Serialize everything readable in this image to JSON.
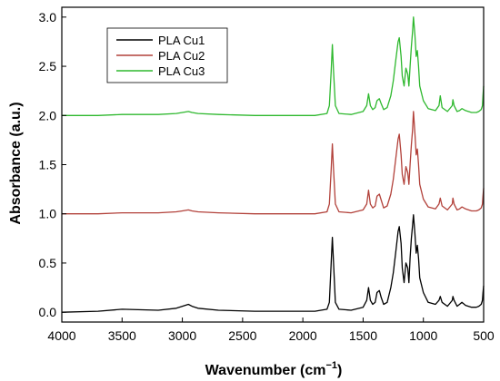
{
  "chart_data": {
    "type": "line",
    "xlabel": "Wavenumber (cm",
    "xlabel_sup": "−1",
    "xlabel_close": ")",
    "ylabel": "Absorbance (a.u.)",
    "xlim": [
      4000,
      500
    ],
    "ylim": [
      -0.1,
      3.1
    ],
    "x_ticks": [
      4000,
      3500,
      3000,
      2500,
      2000,
      1500,
      1000,
      500
    ],
    "x_tick_labels": [
      "4000",
      "3500",
      "3000",
      "2500",
      "2000",
      "1500",
      "1000",
      "500"
    ],
    "y_ticks": [
      0.0,
      0.5,
      1.0,
      1.5,
      2.0,
      2.5,
      3.0
    ],
    "y_tick_labels": [
      "0.0",
      "0.5",
      "1.0",
      "1.5",
      "2.0",
      "2.5",
      "3.0"
    ],
    "grid": false,
    "legend_position": "top-left",
    "series": [
      {
        "name": "PLA Cu1",
        "color": "#000000",
        "x": [
          4000,
          3700,
          3500,
          3200,
          3050,
          3000,
          2950,
          2920,
          2870,
          2700,
          2400,
          2100,
          1900,
          1800,
          1780,
          1765,
          1755,
          1745,
          1730,
          1700,
          1600,
          1500,
          1470,
          1455,
          1440,
          1420,
          1400,
          1385,
          1365,
          1350,
          1330,
          1300,
          1270,
          1250,
          1230,
          1210,
          1200,
          1185,
          1175,
          1160,
          1145,
          1130,
          1120,
          1110,
          1100,
          1090,
          1082,
          1070,
          1060,
          1050,
          1040,
          1030,
          1000,
          960,
          900,
          870,
          860,
          845,
          800,
          760,
          755,
          745,
          720,
          700,
          680,
          650,
          600,
          560,
          540,
          520,
          510,
          505,
          500
        ],
        "y": [
          0.0,
          0.01,
          0.03,
          0.02,
          0.04,
          0.06,
          0.08,
          0.06,
          0.04,
          0.02,
          0.01,
          0.01,
          0.01,
          0.03,
          0.1,
          0.5,
          0.76,
          0.5,
          0.1,
          0.03,
          0.02,
          0.05,
          0.12,
          0.25,
          0.12,
          0.08,
          0.1,
          0.2,
          0.22,
          0.15,
          0.08,
          0.1,
          0.25,
          0.4,
          0.6,
          0.82,
          0.87,
          0.7,
          0.45,
          0.3,
          0.5,
          0.45,
          0.3,
          0.55,
          0.75,
          0.88,
          0.99,
          0.8,
          0.6,
          0.68,
          0.55,
          0.35,
          0.2,
          0.1,
          0.08,
          0.12,
          0.16,
          0.1,
          0.06,
          0.12,
          0.16,
          0.12,
          0.06,
          0.08,
          0.1,
          0.07,
          0.05,
          0.05,
          0.06,
          0.08,
          0.12,
          0.2,
          0.27
        ]
      },
      {
        "name": "PLA Cu2",
        "color": "#b2413a",
        "x": [
          4000,
          3700,
          3500,
          3200,
          3050,
          3000,
          2950,
          2920,
          2870,
          2700,
          2400,
          2100,
          1900,
          1800,
          1780,
          1765,
          1755,
          1745,
          1730,
          1700,
          1600,
          1500,
          1470,
          1455,
          1440,
          1420,
          1400,
          1385,
          1365,
          1350,
          1330,
          1300,
          1270,
          1250,
          1230,
          1210,
          1200,
          1185,
          1175,
          1160,
          1145,
          1130,
          1120,
          1110,
          1100,
          1090,
          1082,
          1070,
          1060,
          1050,
          1040,
          1030,
          1000,
          960,
          900,
          870,
          860,
          845,
          800,
          760,
          755,
          745,
          720,
          700,
          680,
          650,
          600,
          560,
          540,
          520,
          510,
          505,
          500
        ],
        "y": [
          1.0,
          1.0,
          1.01,
          1.01,
          1.02,
          1.03,
          1.04,
          1.03,
          1.02,
          1.01,
          1.0,
          1.0,
          1.0,
          1.02,
          1.1,
          1.45,
          1.71,
          1.45,
          1.1,
          1.02,
          1.01,
          1.04,
          1.1,
          1.24,
          1.1,
          1.06,
          1.08,
          1.18,
          1.2,
          1.14,
          1.06,
          1.08,
          1.2,
          1.35,
          1.55,
          1.76,
          1.81,
          1.6,
          1.4,
          1.3,
          1.48,
          1.42,
          1.3,
          1.5,
          1.7,
          1.85,
          2.04,
          1.82,
          1.6,
          1.66,
          1.5,
          1.3,
          1.15,
          1.07,
          1.05,
          1.1,
          1.16,
          1.08,
          1.04,
          1.1,
          1.16,
          1.1,
          1.04,
          1.05,
          1.07,
          1.05,
          1.03,
          1.03,
          1.04,
          1.06,
          1.1,
          1.18,
          1.26
        ]
      },
      {
        "name": "PLA Cu3",
        "color": "#2eb82e",
        "x": [
          4000,
          3700,
          3500,
          3200,
          3050,
          3000,
          2950,
          2920,
          2870,
          2700,
          2400,
          2100,
          1900,
          1800,
          1780,
          1765,
          1755,
          1745,
          1730,
          1700,
          1600,
          1500,
          1470,
          1455,
          1440,
          1420,
          1400,
          1385,
          1365,
          1350,
          1330,
          1300,
          1270,
          1250,
          1230,
          1210,
          1200,
          1185,
          1175,
          1160,
          1145,
          1130,
          1120,
          1110,
          1100,
          1090,
          1082,
          1070,
          1060,
          1050,
          1040,
          1030,
          1000,
          960,
          900,
          870,
          860,
          845,
          800,
          760,
          755,
          745,
          720,
          700,
          680,
          650,
          600,
          560,
          540,
          520,
          510,
          505,
          500
        ],
        "y": [
          2.0,
          2.0,
          2.01,
          2.01,
          2.02,
          2.03,
          2.04,
          2.03,
          2.02,
          2.01,
          2.0,
          2.0,
          2.0,
          2.02,
          2.1,
          2.45,
          2.72,
          2.45,
          2.1,
          2.02,
          2.01,
          2.04,
          2.1,
          2.22,
          2.1,
          2.06,
          2.08,
          2.15,
          2.17,
          2.12,
          2.06,
          2.08,
          2.2,
          2.35,
          2.55,
          2.75,
          2.79,
          2.6,
          2.4,
          2.3,
          2.48,
          2.42,
          2.3,
          2.5,
          2.7,
          2.85,
          3.0,
          2.82,
          2.6,
          2.66,
          2.5,
          2.3,
          2.15,
          2.07,
          2.05,
          2.1,
          2.2,
          2.08,
          2.04,
          2.1,
          2.16,
          2.1,
          2.04,
          2.05,
          2.07,
          2.05,
          2.03,
          2.03,
          2.04,
          2.06,
          2.1,
          2.2,
          2.3
        ]
      }
    ]
  }
}
